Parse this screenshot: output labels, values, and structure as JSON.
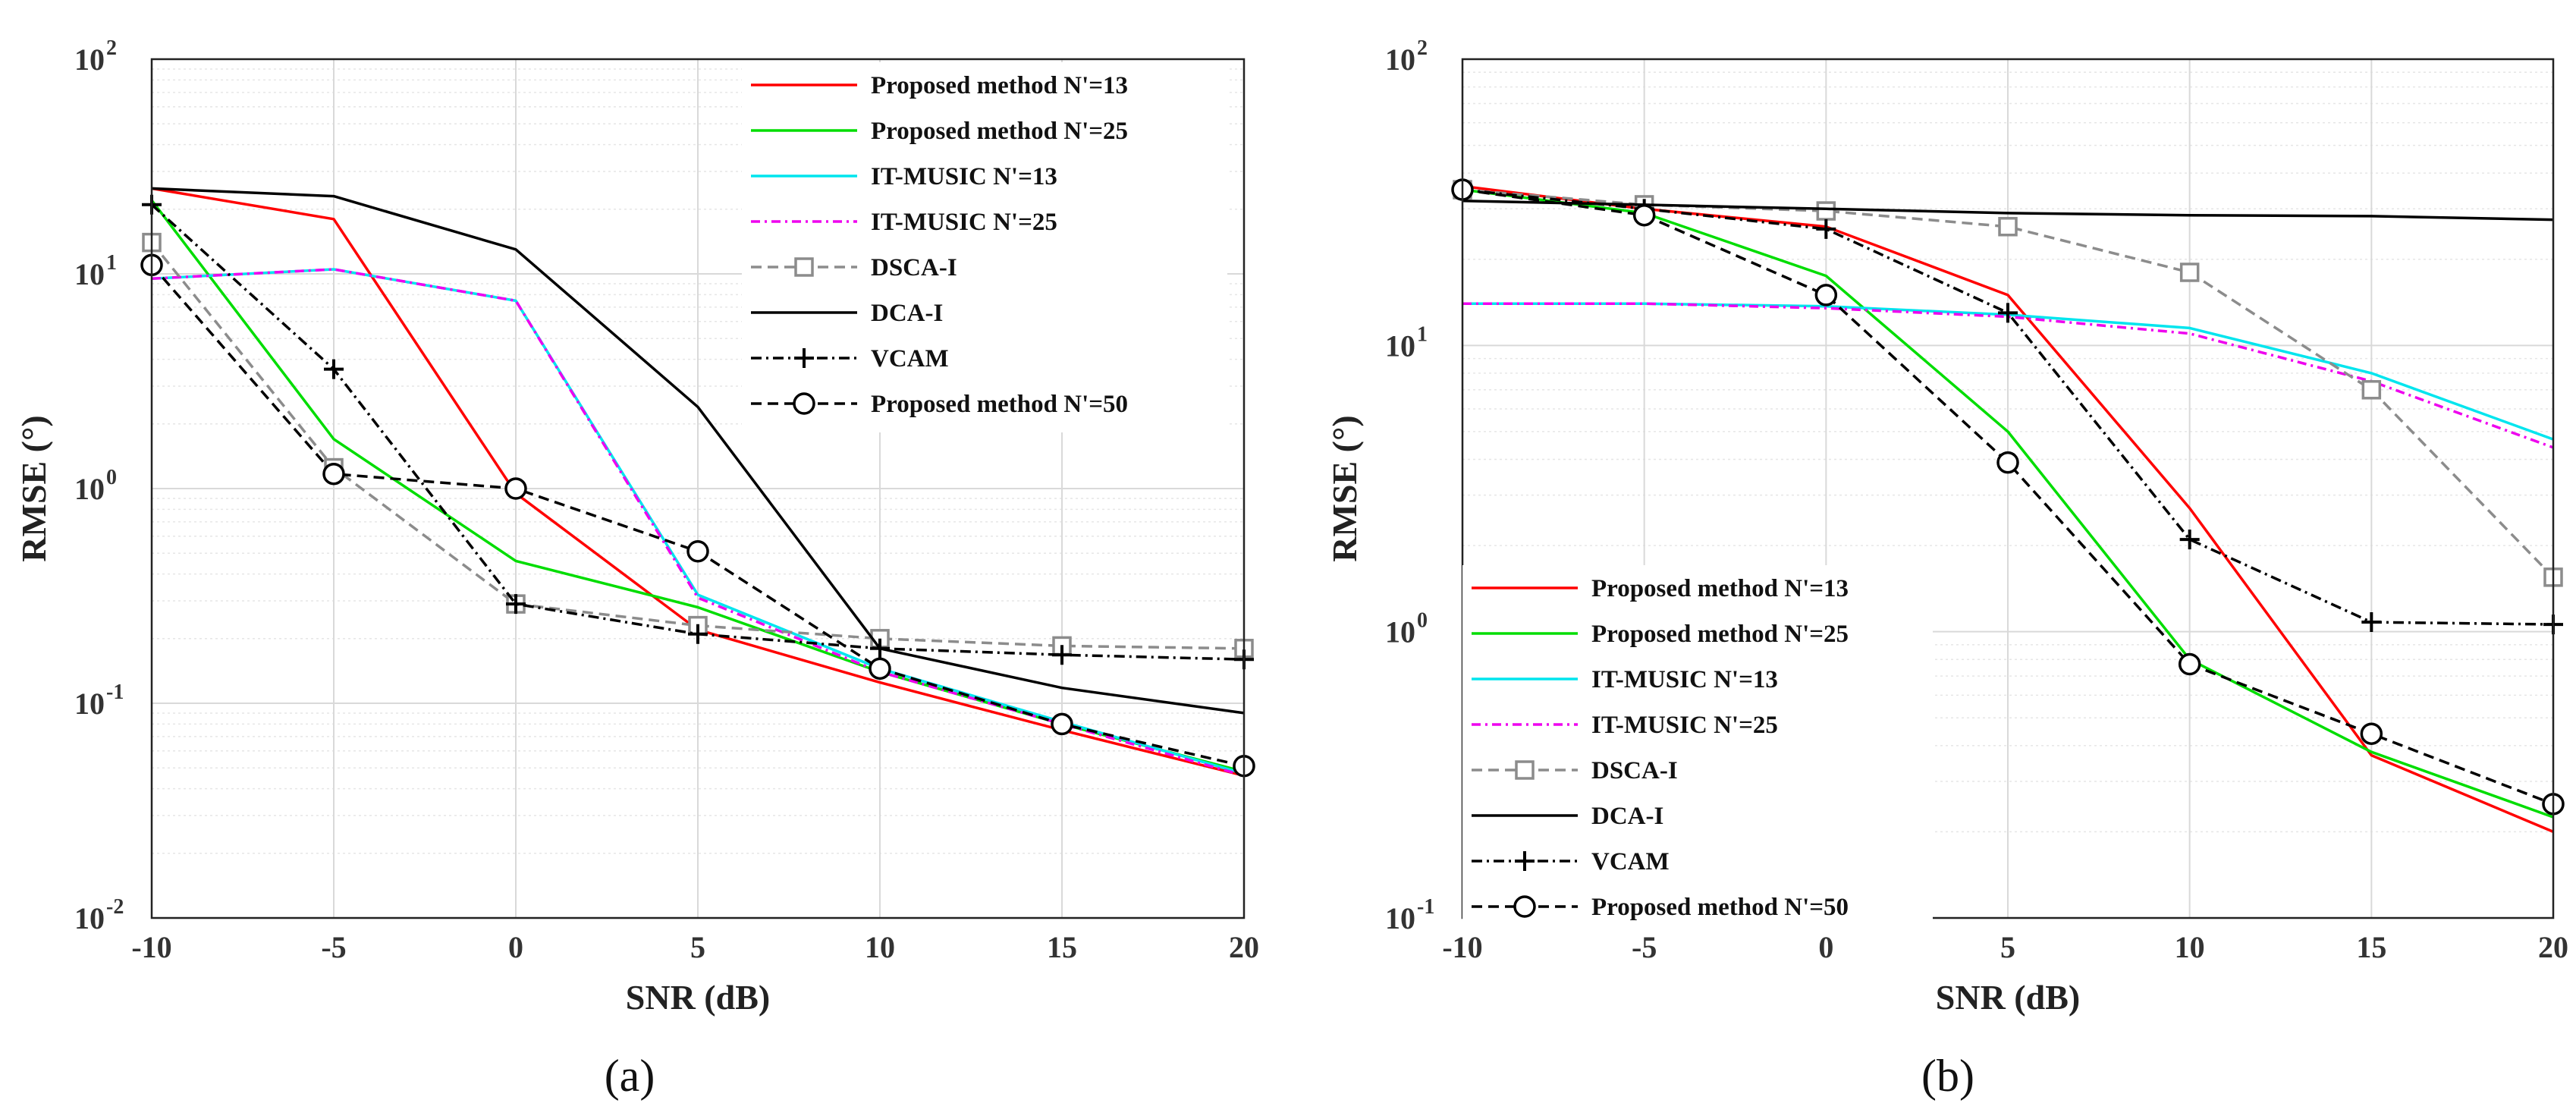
{
  "figure": {
    "captions": [
      "(a)",
      "(b)"
    ]
  },
  "chart_data": [
    {
      "type": "line",
      "panel": "(a)",
      "title": "",
      "xlabel": "SNR (dB)",
      "ylabel": "RMSE (°)",
      "yscale": "log",
      "x": [
        -10,
        -5,
        0,
        5,
        10,
        15,
        20
      ],
      "xlim": [
        -10,
        20
      ],
      "ylim": [
        0.01,
        100
      ],
      "xticks": [
        "-10",
        "-5",
        "0",
        "5",
        "10",
        "15",
        "20"
      ],
      "yticks": [
        {
          "base": "10",
          "exp": "-2"
        },
        {
          "base": "10",
          "exp": "-1"
        },
        {
          "base": "10",
          "exp": "0"
        },
        {
          "base": "10",
          "exp": "1"
        },
        {
          "base": "10",
          "exp": "2"
        }
      ],
      "grid": true,
      "legend_position": "top-right",
      "series": [
        {
          "name": "Proposed method N'=13",
          "color": "#ff0000",
          "dash": "",
          "marker": "none",
          "values": [
            25,
            18,
            0.95,
            0.22,
            0.125,
            0.075,
            0.046
          ]
        },
        {
          "name": "Proposed method N'=25",
          "color": "#00dd00",
          "dash": "",
          "marker": "none",
          "values": [
            22,
            1.7,
            0.46,
            0.28,
            0.14,
            0.08,
            0.048
          ]
        },
        {
          "name": "IT-MUSIC N'=13",
          "color": "#00e5ee",
          "dash": "",
          "marker": "none",
          "values": [
            9.5,
            10.5,
            7.5,
            0.32,
            0.145,
            0.082,
            0.047
          ]
        },
        {
          "name": "IT-MUSIC N'=25",
          "color": "#ee00ee",
          "dash": "12,6,3,6",
          "marker": "none",
          "values": [
            9.5,
            10.5,
            7.5,
            0.31,
            0.14,
            0.08,
            0.046
          ]
        },
        {
          "name": "DSCA-I",
          "color": "#8c8c8c",
          "dash": "14,8",
          "marker": "square",
          "values": [
            14,
            1.25,
            0.29,
            0.23,
            0.2,
            0.185,
            0.18
          ]
        },
        {
          "name": "DCA-I",
          "color": "#000000",
          "dash": "",
          "marker": "none",
          "values": [
            25,
            23,
            13,
            2.4,
            0.18,
            0.118,
            0.09
          ]
        },
        {
          "name": "VCAM",
          "color": "#000000",
          "dash": "14,6,3,6",
          "marker": "plus",
          "values": [
            21,
            3.6,
            0.29,
            0.21,
            0.18,
            0.168,
            0.16
          ]
        },
        {
          "name": "Proposed method N'=50",
          "color": "#000000",
          "dash": "14,8",
          "marker": "circle",
          "values": [
            11,
            1.17,
            1.0,
            0.51,
            0.145,
            0.08,
            0.051
          ]
        }
      ]
    },
    {
      "type": "line",
      "panel": "(b)",
      "title": "",
      "xlabel": "SNR (dB)",
      "ylabel": "RMSE (°)",
      "yscale": "log",
      "x": [
        -10,
        -5,
        0,
        5,
        10,
        15,
        20
      ],
      "xlim": [
        -10,
        20
      ],
      "ylim": [
        0.1,
        100
      ],
      "xticks": [
        "-10",
        "-5",
        "0",
        "5",
        "10",
        "15",
        "20"
      ],
      "yticks": [
        {
          "base": "10",
          "exp": "-1"
        },
        {
          "base": "10",
          "exp": "0"
        },
        {
          "base": "10",
          "exp": "1"
        },
        {
          "base": "10",
          "exp": "2"
        }
      ],
      "grid": true,
      "legend_position": "bottom-left",
      "series": [
        {
          "name": "Proposed method N'=13",
          "color": "#ff0000",
          "dash": "",
          "marker": "none",
          "values": [
            36,
            30,
            26,
            15,
            2.7,
            0.37,
            0.2
          ]
        },
        {
          "name": "Proposed method N'=25",
          "color": "#00dd00",
          "dash": "",
          "marker": "none",
          "values": [
            35,
            29,
            17.5,
            5.0,
            0.8,
            0.38,
            0.225
          ]
        },
        {
          "name": "IT-MUSIC N'=13",
          "color": "#00e5ee",
          "dash": "",
          "marker": "none",
          "values": [
            14,
            14,
            13.7,
            12.8,
            11.5,
            8.0,
            4.7
          ]
        },
        {
          "name": "IT-MUSIC N'=25",
          "color": "#ee00ee",
          "dash": "12,6,3,6",
          "marker": "none",
          "values": [
            14,
            14,
            13.5,
            12.6,
            11.0,
            7.5,
            4.4
          ]
        },
        {
          "name": "DSCA-I",
          "color": "#8c8c8c",
          "dash": "14,8",
          "marker": "square",
          "values": [
            35,
            31,
            29.5,
            26,
            18,
            7.0,
            1.55
          ]
        },
        {
          "name": "DCA-I",
          "color": "#000000",
          "dash": "",
          "marker": "none",
          "values": [
            32,
            31,
            30,
            29,
            28.5,
            28.3,
            27.5
          ]
        },
        {
          "name": "VCAM",
          "color": "#000000",
          "dash": "14,6,3,6",
          "marker": "plus",
          "values": [
            35,
            30,
            25.5,
            13,
            2.1,
            1.08,
            1.06
          ]
        },
        {
          "name": "Proposed method N'=50",
          "color": "#000000",
          "dash": "14,8",
          "marker": "circle",
          "values": [
            35,
            28.5,
            15,
            3.9,
            0.77,
            0.44,
            0.25
          ]
        }
      ]
    }
  ]
}
